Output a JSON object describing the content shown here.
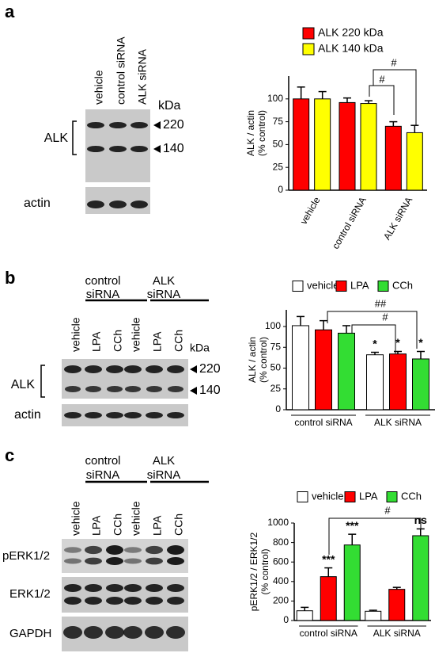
{
  "figure": {
    "panels": [
      {
        "label": "a",
        "lanes": [
          "vehicle",
          "control siRNA",
          "ALK siRNA"
        ],
        "kda": "kDa",
        "protein": "ALK",
        "markers": [
          "220",
          "140"
        ],
        "blots": [
          "actin"
        ]
      },
      {
        "label": "b",
        "groups": [
          [
            "control",
            "siRNA"
          ],
          [
            "ALK",
            "siRNA"
          ]
        ],
        "lanes": [
          "vehicle",
          "LPA",
          "CCh",
          "vehicle",
          "LPA",
          "CCh"
        ],
        "kda": "kDa",
        "protein": "ALK",
        "markers": [
          "220",
          "140"
        ],
        "blots": [
          "actin"
        ]
      },
      {
        "label": "c",
        "groups": [
          [
            "control",
            "siRNA"
          ],
          [
            "ALK",
            "siRNA"
          ]
        ],
        "lanes": [
          "vehicle",
          "LPA",
          "CCh",
          "vehicle",
          "LPA",
          "CCh"
        ],
        "blots": [
          "pERK1/2",
          "ERK1/2",
          "GAPDH"
        ]
      }
    ]
  },
  "chart_data": [
    {
      "type": "bar",
      "ylabel": [
        "ALK / actin",
        "(% control)"
      ],
      "categories": [
        "vehicle",
        "control siRNA",
        "ALK siRNA"
      ],
      "series": [
        {
          "name": "ALK 220 kDa",
          "color": "#ff0000",
          "values": [
            100,
            96,
            70
          ],
          "errors": [
            13,
            5,
            5
          ]
        },
        {
          "name": "ALK 140 kDa",
          "color": "#ffff00",
          "values": [
            100,
            95,
            63
          ],
          "errors": [
            8,
            3,
            8
          ]
        }
      ],
      "ylim": [
        0,
        125
      ],
      "yticks": [
        0,
        25,
        50,
        75,
        100
      ],
      "legend": "top-left",
      "annotations": [
        {
          "text": "#"
        },
        {
          "text": "#"
        }
      ]
    },
    {
      "type": "bar",
      "ylabel": [
        "ALK / actin",
        "(% control)"
      ],
      "categories": [
        "control siRNA",
        "ALK siRNA"
      ],
      "series": [
        {
          "name": "vehicle",
          "color": "#ffffff",
          "values": [
            101,
            66
          ],
          "errors": [
            11,
            3
          ]
        },
        {
          "name": "LPA",
          "color": "#ff0000",
          "values": [
            96,
            67
          ],
          "errors": [
            11,
            3
          ]
        },
        {
          "name": "CCh",
          "color": "#33dd33",
          "values": [
            92,
            61
          ],
          "errors": [
            9,
            9
          ]
        }
      ],
      "ylim": [
        0,
        120
      ],
      "yticks": [
        0,
        25,
        50,
        75,
        100
      ],
      "legend": "top",
      "annotations": [
        {
          "text": "##"
        },
        {
          "text": "#"
        },
        {
          "text": "*"
        },
        {
          "text": "*"
        },
        {
          "text": "*"
        }
      ]
    },
    {
      "type": "bar",
      "ylabel": [
        "pERK1/2 / ERK1/2",
        "(% control)"
      ],
      "categories": [
        "control siRNA",
        "ALK siRNA"
      ],
      "series": [
        {
          "name": "vehicle",
          "color": "#ffffff",
          "values": [
            100,
            95
          ],
          "errors": [
            35,
            10
          ]
        },
        {
          "name": "LPA",
          "color": "#ff0000",
          "values": [
            450,
            320
          ],
          "errors": [
            90,
            20
          ]
        },
        {
          "name": "CCh",
          "color": "#33dd33",
          "values": [
            775,
            870
          ],
          "errors": [
            110,
            70
          ]
        }
      ],
      "ylim": [
        0,
        1000
      ],
      "yticks": [
        0,
        200,
        400,
        600,
        800,
        1000
      ],
      "legend": "top",
      "annotations": [
        {
          "text": "#"
        },
        {
          "text": "***"
        },
        {
          "text": "***"
        },
        {
          "text": "ns"
        }
      ]
    }
  ]
}
